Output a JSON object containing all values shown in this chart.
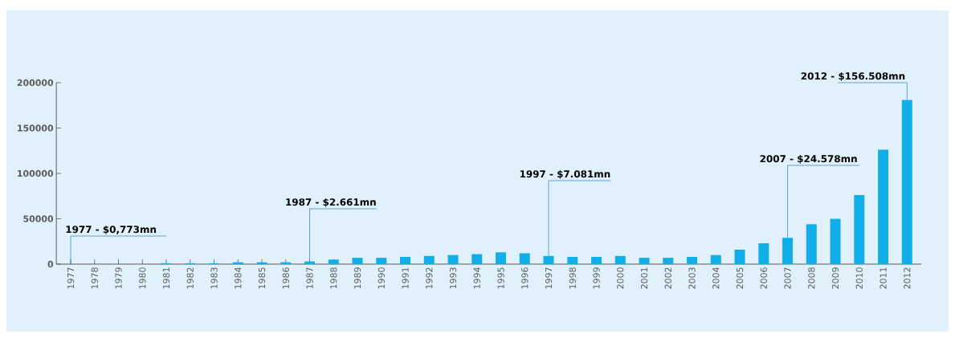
{
  "chart_data": {
    "type": "bar",
    "categories": [
      "1977",
      "1978",
      "1979",
      "1980",
      "1981",
      "1982",
      "1983",
      "1984",
      "1985",
      "1986",
      "1987",
      "1988",
      "1989",
      "1990",
      "1991",
      "1992",
      "1993",
      "1994",
      "1995",
      "1996",
      "1997",
      "1998",
      "1999",
      "2000",
      "2001",
      "2002",
      "2003",
      "2004",
      "2005",
      "2006",
      "2007",
      "2008",
      "2009",
      "2010",
      "2011",
      "2012"
    ],
    "values": [
      0,
      0,
      0,
      0,
      1000,
      1000,
      1000,
      2000,
      2000,
      2000,
      3000,
      5000,
      7000,
      7000,
      8000,
      9000,
      10000,
      11000,
      13000,
      12000,
      9000,
      8000,
      8000,
      9000,
      7000,
      7000,
      8000,
      10000,
      16000,
      23000,
      29000,
      44000,
      50000,
      76000,
      126000,
      181000
    ],
    "color": "#12aeea",
    "ylim": [
      0,
      200000
    ],
    "yticks": [
      0,
      50000,
      100000,
      150000,
      200000
    ],
    "annotations": [
      {
        "text": "1977 - $0,773mn",
        "x": "1977",
        "y": 0
      },
      {
        "text": "1987 - $2.661mn",
        "x": "1987",
        "y": 3000
      },
      {
        "text": "1997 - $7.081mn",
        "x": "1997",
        "y": 9000
      },
      {
        "text": "2007 - $24.578mn",
        "x": "2007",
        "y": 29000
      },
      {
        "text": "2012 - $156.508mn",
        "x": "2012",
        "y": 181000
      }
    ]
  }
}
